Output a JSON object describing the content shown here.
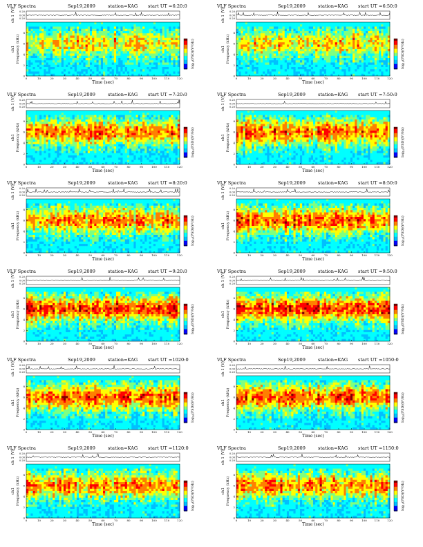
{
  "header": {
    "title": "VLF Spectra",
    "station": "station=KAG",
    "start_prefix": "start UT ="
  },
  "panels": [
    {
      "date": "Sep19,2009",
      "start_ut": "6:20:0",
      "intensity": 0.55
    },
    {
      "date": "Sep19,2009",
      "start_ut": "6:50:0",
      "intensity": 0.55
    },
    {
      "date": "Sep19,2009",
      "start_ut": "7:20:0",
      "intensity": 0.75
    },
    {
      "date": "Sep19,2009",
      "start_ut": "7:50:0",
      "intensity": 0.75
    },
    {
      "date": "Sep19,2009",
      "start_ut": "8:20:0",
      "intensity": 0.72
    },
    {
      "date": "Sep19,2009",
      "start_ut": "8:50:0",
      "intensity": 0.8
    },
    {
      "date": "Sep19,2009",
      "start_ut": "9:20:0",
      "intensity": 0.85
    },
    {
      "date": "Sep19,2009",
      "start_ut": "9:50:0",
      "intensity": 0.85
    },
    {
      "date": "Sep19,2009",
      "start_ut": "1020:0",
      "intensity": 0.8
    },
    {
      "date": "Sep19,2009",
      "start_ut": "1050:0",
      "intensity": 0.8
    },
    {
      "date": "Sep19,2009",
      "start_ut": "1120:0",
      "intensity": 0.7
    },
    {
      "date": "Sep19,2009",
      "start_ut": "1150:0",
      "intensity": 0.72
    }
  ],
  "chart_data": {
    "type": "heatmap",
    "description_units": "spectrogram",
    "xlabel": "Time (sec)",
    "xlim": [
      0,
      120
    ],
    "x_ticks": [
      "0",
      "10",
      "20",
      "30",
      "40",
      "50",
      "60",
      "70",
      "80",
      "90",
      "100",
      "110",
      "120"
    ],
    "ylabel_top": "ch 1 (V)",
    "top_ylim": [
      -0.2,
      0.2
    ],
    "top_y_ticks": [
      "0.20",
      "0.00",
      "0.20"
    ],
    "ylabel_channel": "ch1",
    "ylabel_spec": "Frequency (kHz)",
    "ylim": [
      0,
      10
    ],
    "y_ticks": [
      "0",
      "2",
      "4",
      "6",
      "8"
    ],
    "colorbar_label": "log",
    "colorbar_label_sub": "10",
    "colorbar_label_rest": "(PSD)(V²/Hz)",
    "colormap": [
      "#00007f",
      "#0000ff",
      "#00bfff",
      "#00ffff",
      "#7fff7f",
      "#ffff00",
      "#ff7f00",
      "#ff0000",
      "#800000"
    ]
  }
}
